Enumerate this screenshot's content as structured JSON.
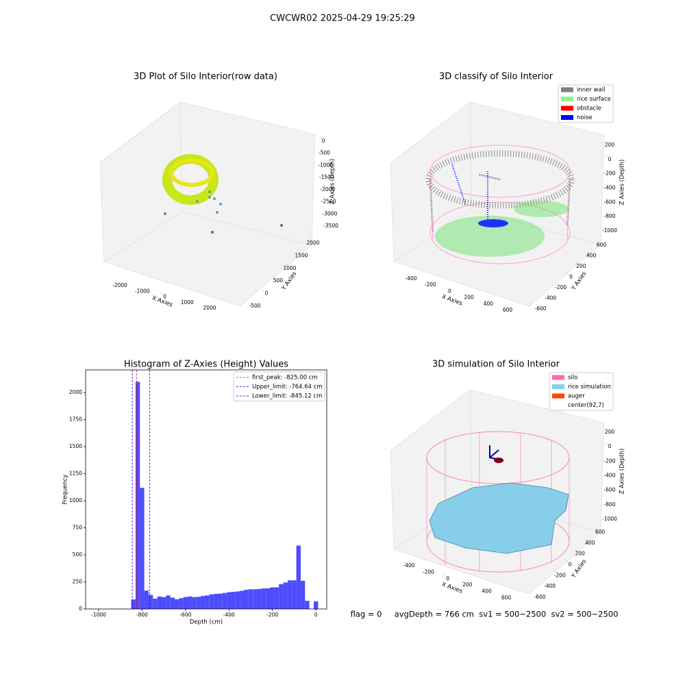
{
  "title": "CWCWR02 2025-04-29 19:25:29",
  "footer": "flag = 0     avgDepth = 766 cm  sv1 = 500~2500  sv2 = 500~2500",
  "chart_data": [
    {
      "type": "scatter3d",
      "title": "3D Plot of Silo Interior(row data)",
      "x_label": "X Axies",
      "y_label": "Y Axies",
      "z_label": "Z Axies (Depth)",
      "xticks": [
        -2000,
        -1000,
        0,
        1000,
        2000
      ],
      "yticks": [
        -500,
        0,
        500,
        1000,
        1500,
        2000
      ],
      "zticks": [
        0,
        -500,
        -1000,
        -1500,
        -2000,
        -2500,
        -3000,
        -3500
      ]
    },
    {
      "type": "scatter3d",
      "title": "3D classify of Silo Interior",
      "x_label": "X Axies",
      "y_label": "Y Axies",
      "z_label": "Z Axies (Depth)",
      "xticks": [
        -400,
        -200,
        0,
        200,
        400,
        600
      ],
      "yticks": [
        -600,
        -400,
        -200,
        0,
        200,
        400,
        600
      ],
      "zticks": [
        200,
        0,
        -200,
        -400,
        -600,
        -800,
        -1000
      ],
      "legend": [
        {
          "label": "inner wall",
          "color": "#808080"
        },
        {
          "label": "rice surface",
          "color": "#90ee90"
        },
        {
          "label": "obstacle",
          "color": "#ff0000"
        },
        {
          "label": "noise",
          "color": "#0000ff"
        }
      ]
    },
    {
      "type": "histogram",
      "title": "Histogram of Z-Axies (Height) Values",
      "x_label": "Depth (cm)",
      "y_label": "Frequency",
      "color": "#4d4dff",
      "bins": [
        -850,
        -830,
        -810,
        -790,
        -770,
        -750,
        -730,
        -710,
        -690,
        -670,
        -650,
        -630,
        -610,
        -590,
        -570,
        -550,
        -530,
        -510,
        -490,
        -470,
        -450,
        -430,
        -410,
        -390,
        -370,
        -350,
        -330,
        -310,
        -290,
        -270,
        -250,
        -230,
        -210,
        -190,
        -170,
        -150,
        -130,
        -110,
        -90,
        -70,
        -50,
        -30,
        -10,
        10
      ],
      "values": [
        88,
        2100,
        1120,
        170,
        130,
        95,
        115,
        110,
        125,
        105,
        90,
        100,
        110,
        115,
        110,
        112,
        120,
        125,
        135,
        140,
        142,
        148,
        155,
        158,
        162,
        168,
        178,
        182,
        182,
        185,
        190,
        192,
        200,
        200,
        230,
        245,
        265,
        265,
        585,
        260,
        75,
        0,
        70
      ],
      "xlim": [
        -1060,
        50
      ],
      "ylim": [
        0,
        2210
      ],
      "xticks": [
        -1000,
        -800,
        -600,
        -400,
        -200,
        0
      ],
      "yticks": [
        0,
        250,
        500,
        750,
        1000,
        1250,
        1500,
        1750,
        2000
      ],
      "vlines": [
        {
          "value": -825,
          "label": "first_peak: -825.00 cm",
          "color": "#ff0000"
        },
        {
          "value": -764.64,
          "label": "Upper_limit: -764.64 cm",
          "color": "#0000ff"
        },
        {
          "value": -845.12,
          "label": "Lower_limit: -845.12 cm",
          "color": "#0000ff"
        }
      ]
    },
    {
      "type": "surface3d",
      "title": "3D simulation of Silo Interior",
      "x_label": "X Axies",
      "y_label": "Y Axies",
      "z_label": "Z Axies (Depth)",
      "xticks": [
        -400,
        -200,
        0,
        200,
        400,
        600
      ],
      "yticks": [
        -600,
        -400,
        -200,
        0,
        200,
        400,
        600
      ],
      "zticks": [
        200,
        0,
        -200,
        -400,
        -600,
        -800,
        -1000
      ],
      "legend": [
        {
          "label": "silo",
          "color": "#ff69b4"
        },
        {
          "label": "rice simulation",
          "color": "#87ceeb"
        },
        {
          "label": "auger",
          "color": "#ff4500"
        },
        {
          "label": "center(92,7)",
          "color": "#ffffff"
        }
      ]
    }
  ]
}
